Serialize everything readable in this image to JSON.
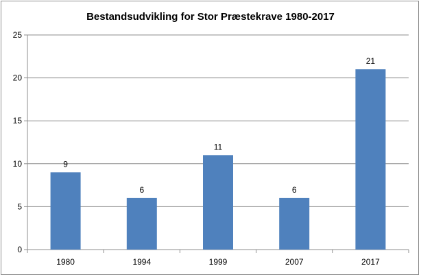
{
  "chart_data": {
    "type": "bar",
    "title": "Bestandsudvikling for Stor Præstekrave 1980-2017",
    "categories": [
      "1980",
      "1994",
      "1999",
      "2007",
      "2017"
    ],
    "values": [
      9,
      6,
      11,
      6,
      21
    ],
    "data_labels": [
      "9",
      "6",
      "11",
      "6",
      "21"
    ],
    "y_ticks": [
      "0",
      "5",
      "10",
      "15",
      "20",
      "25"
    ],
    "ylim": [
      0,
      25
    ],
    "xlabel": "",
    "ylabel": "",
    "grid": true,
    "legend": "none",
    "bar_color": "#4f81bd",
    "grid_color": "#8c8c8c"
  }
}
